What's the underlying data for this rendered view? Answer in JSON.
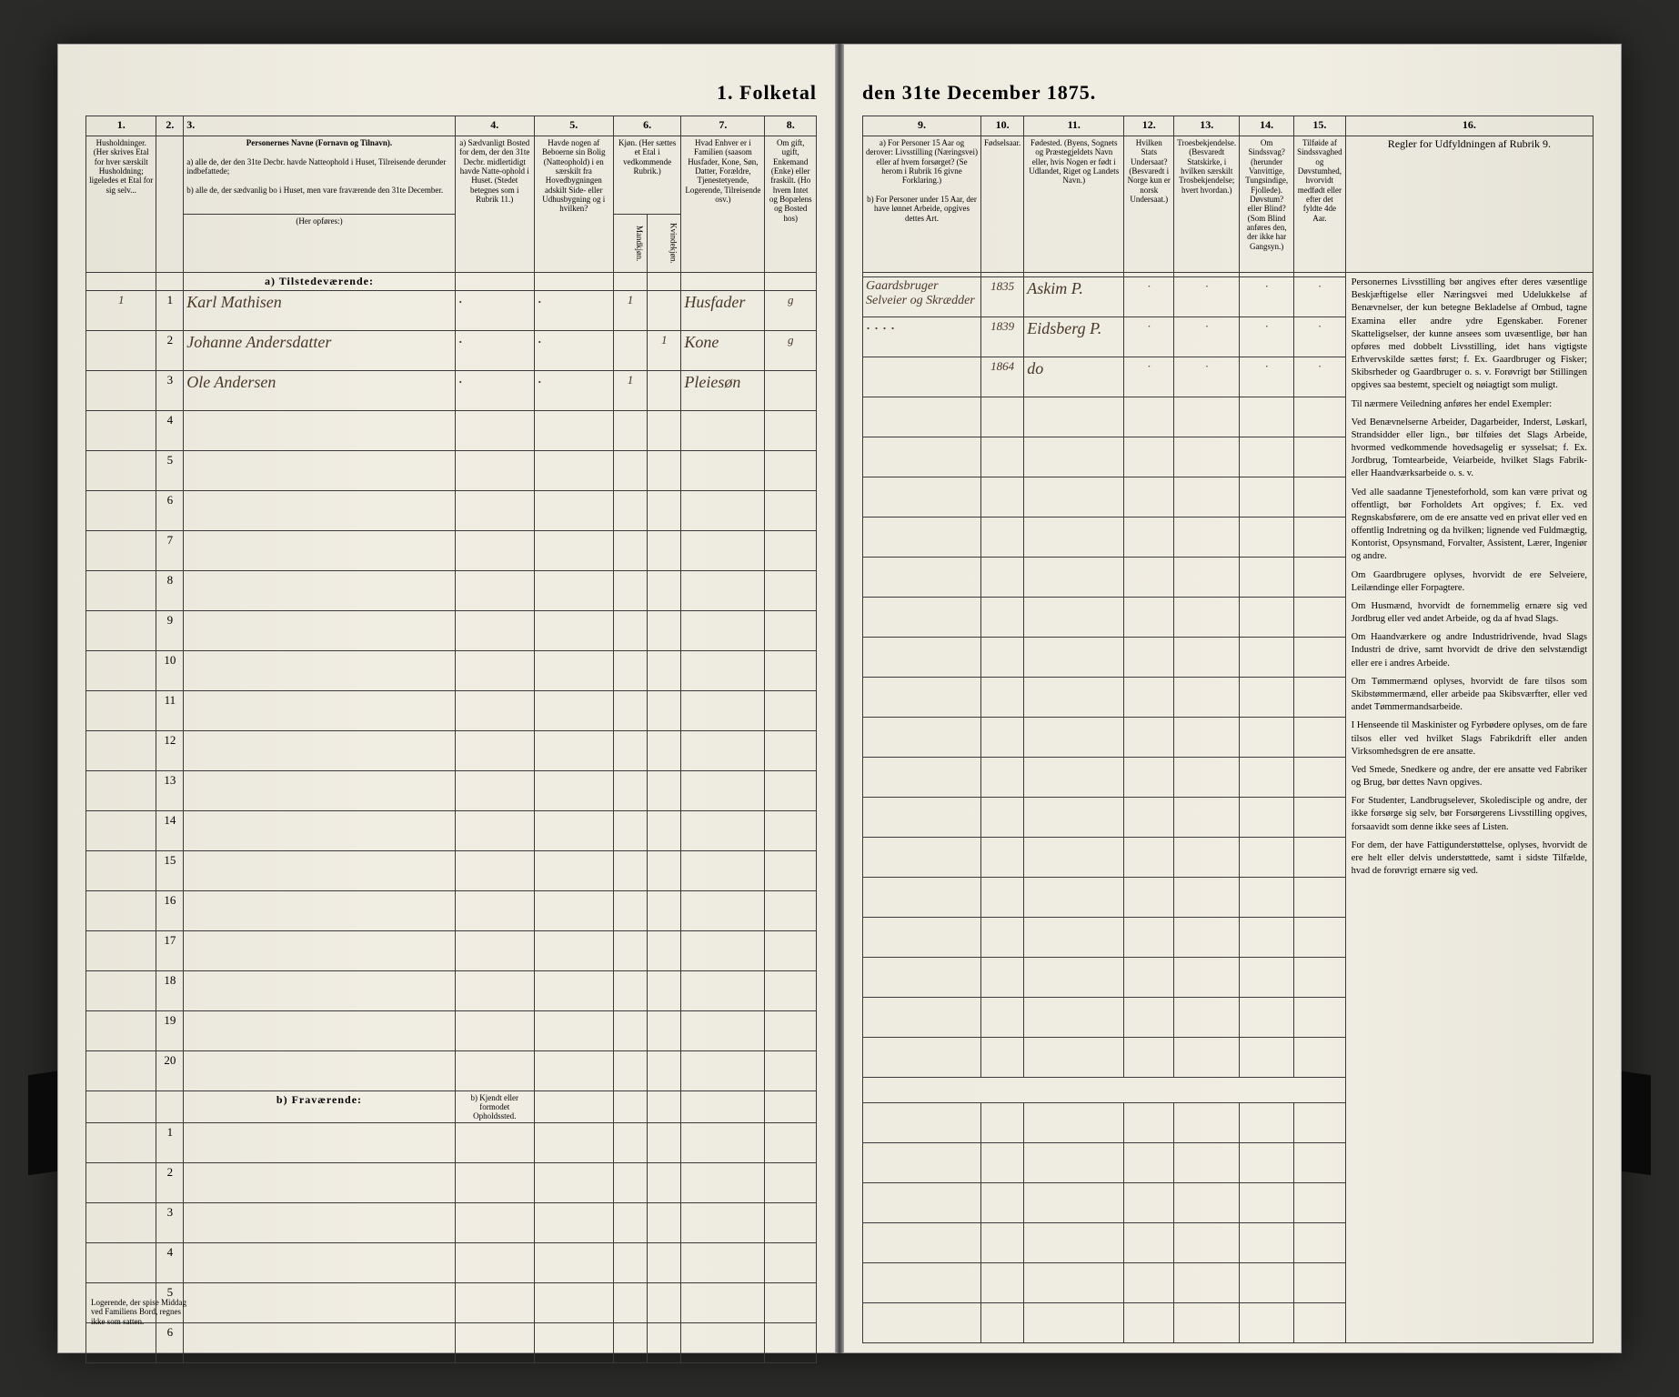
{
  "document": {
    "title_left": "1. Folketal",
    "title_right": "den 31te December 1875.",
    "type": "census-ledger",
    "background_color": "#ebe8de",
    "border_color": "#3a3a3a",
    "ink_color": "#4a3828"
  },
  "columns_left": [
    {
      "num": "1.",
      "header": "Husholdninger. (Her skrives Etal for hver særskilt Husholdning; ligeledes et Etal for sig selv..."
    },
    {
      "num": "2.",
      "header": ""
    },
    {
      "num": "3.",
      "header": "Personernes Navne (Fornavn og Tilnavn).",
      "sub_a": "a) alle de, der den 31te Decbr. havde Natteophold i Huset, Tilreisende derunder indbefattede;",
      "sub_b": "b) alle de, der sædvanlig bo i Huset, men vare fraværende den 31te December."
    },
    {
      "num": "4.",
      "header": "a) Sædvanligt Bosted for dem, der den 31te Decbr. midlertidigt havde Natte-ophold i Huset. (Stedet betegnes som i Rubrik 11.)"
    },
    {
      "num": "5.",
      "header": "Havde nogen af Beboerne sin Bolig (Natteophold) i en særskilt fra Hovedbygningen adskilt Side- eller Udhusbygning og i hvilken?"
    },
    {
      "num": "6.",
      "header": "Kjøn. (Her sættes et Etal i vedkommende Rubrik.)",
      "sub": "Mandkjøn. | Kvindekjøn."
    },
    {
      "num": "7.",
      "header": "Hvad Enhver er i Familien (saasom Husfader, Kone, Søn, Datter, Forældre, Tjenestetyende, Logerende, Tilreisende osv.)"
    },
    {
      "num": "8.",
      "header": "Om gift, ugift, Enkemand (Enke) eller fraskilt. (Ho hvem Intet og Bopælens og Bosted hos)"
    }
  ],
  "columns_right": [
    {
      "num": "9.",
      "header": "a) For Personer 15 Aar og derover: Livsstilling (Næringsvei) eller af hvem forsørget? (Se herom i Rubrik 16 givne Forklaring.)",
      "sub": "b) For Personer under 15 Aar, der have lønnet Arbeide, opgives dettes Art."
    },
    {
      "num": "10.",
      "header": "Fødselsaar."
    },
    {
      "num": "11.",
      "header": "Fødested. (Byens, Sognets og Præstegjeldets Navn eller, hvis Nogen er født i Udlandet, Riget og Landets Navn.)"
    },
    {
      "num": "12.",
      "header": "Hvilken Stats Undersaat? (Besvaredt i Norge kun er norsk Undersaat.)"
    },
    {
      "num": "13.",
      "header": "Troesbekjendelse. (Besvaredt Statskirke, i hvilken særskilt Trosbekjendelse; hvert hvordan.)"
    },
    {
      "num": "14.",
      "header": "Om Sindssvag? (herunder Vanvittige, Tungsindige, Fjollede). Døvstum? eller Blind? (Som Blind anføres den, der ikke har Gangsyn.)"
    },
    {
      "num": "15.",
      "header": "Tilføide af Sindssvaghed og Døvstumhed, hvorvidt medfødt eller efter det fyldte 4de Aar."
    },
    {
      "num": "16.",
      "header": "Regler for Udfyldningen af Rubrik 9."
    }
  ],
  "section_labels": {
    "tilstedevaerende": "a) Tilstedeværende:",
    "fravaerende": "b) Fraværende:",
    "fravaerende_col4": "b) Kjendt eller formodet Opholdssted."
  },
  "persons": [
    {
      "row": "1",
      "name": "Karl Mathisen",
      "kj_m": "1",
      "kj_k": "",
      "family": "Husfader",
      "civil": "g",
      "occupation": "Gaardsbruger Selveier og Skrædder",
      "birth": "1835",
      "birthplace": "Askim P."
    },
    {
      "row": "2",
      "name": "Johanne Andersdatter",
      "kj_m": "",
      "kj_k": "1",
      "family": "Kone",
      "civil": "g",
      "occupation": "· · · ·",
      "birth": "1839",
      "birthplace": "Eidsberg P."
    },
    {
      "row": "3",
      "name": "Ole Andersen",
      "kj_m": "1",
      "kj_k": "",
      "family": "Pleiesøn",
      "civil": "",
      "occupation": "",
      "birth": "1864",
      "birthplace": "do"
    }
  ],
  "empty_rows_present": [
    "4",
    "5",
    "6",
    "7",
    "8",
    "9",
    "10",
    "11",
    "12",
    "13",
    "14",
    "15",
    "16",
    "17",
    "18",
    "19",
    "20"
  ],
  "empty_rows_absent": [
    "1",
    "2",
    "3",
    "4",
    "5",
    "6"
  ],
  "instructions": {
    "title": "Regler for Udfyldningen af Rubrik 9.",
    "paragraphs": [
      "Personernes Livsstilling bør angives efter deres væsentlige Beskjæftigelse eller Næringsvei med Udelukkelse af Benævnelser, der kun betegne Bekladelse af Ombud, tagne Examina eller andre ydre Egenskaber. Forener Skatteligselser, der kunne ansees som uvæsentlige, bør han opføres med dobbelt Livsstilling, idet hans vigtigste Erhvervskilde sættes først; f. Ex. Gaardbruger og Fisker; Skibsrheder og Gaardbruger o. s. v. Forøvrigt bør Stillingen opgives saa bestemt, specielt og nøiagtigt som muligt.",
      "Til nærmere Veiledning anføres her endel Exempler:",
      "Ved Benævnelserne Arbeider, Dagarbeider, Inderst, Løskarl, Strandsidder eller lign., bør tilføies det Slags Arbeide, hvormed vedkommende hovedsagelig er sysselsat; f. Ex. Jordbrug, Tomtearbeide, Veiarbeide, hvilket Slags Fabrik- eller Haandværksarbeide o. s. v.",
      "Ved alle saadanne Tjenesteforhold, som kan være privat og offentligt, bør Forholdets Art opgives; f. Ex. ved Regnskabsførere, om de ere ansatte ved en privat eller ved en offentlig Indretning og da hvilken; lignende ved Fuldmægtig, Kontorist, Opsynsmand, Forvalter, Assistent, Lærer, Ingeniør og andre.",
      "Om Gaardbrugere oplyses, hvorvidt de ere Selveiere, Leilændinge eller Forpagtere.",
      "Om Husmænd, hvorvidt de fornemmelig ernære sig ved Jordbrug eller ved andet Arbeide, og da af hvad Slags.",
      "Om Haandværkere og andre Industridrivende, hvad Slags Industri de drive, samt hvorvidt de drive den selvstændigt eller ere i andres Arbeide.",
      "Om Tømmermænd oplyses, hvorvidt de fare tilsos som Skibstømmermænd, eller arbeide paa Skibsværfter, eller ved andet Tømmermandsarbeide.",
      "I Henseende til Maskinister og Fyrbødere oplyses, om de fare tilsos eller ved hvilket Slags Fabrikdrift eller anden Virksomhedsgren de ere ansatte.",
      "Ved Smede, Snedkere og andre, der ere ansatte ved Fabriker og Brug, bør dettes Navn opgives.",
      "For Studenter, Landbrugselever, Skoledisciple og andre, der ikke forsørge sig selv, bør Forsørgerens Livsstilling opgives, forsaavidt som denne ikke sees af Listen.",
      "For dem, der have Fattigunderstøttelse, oplyses, hvorvidt de ere helt eller delvis understøttede, samt i sidste Tilfælde, hvad de forøvrigt ernære sig ved."
    ]
  },
  "footnote_left": "Logerende, der spise Middag ved Familiens Bord, regnes ikke som satten."
}
